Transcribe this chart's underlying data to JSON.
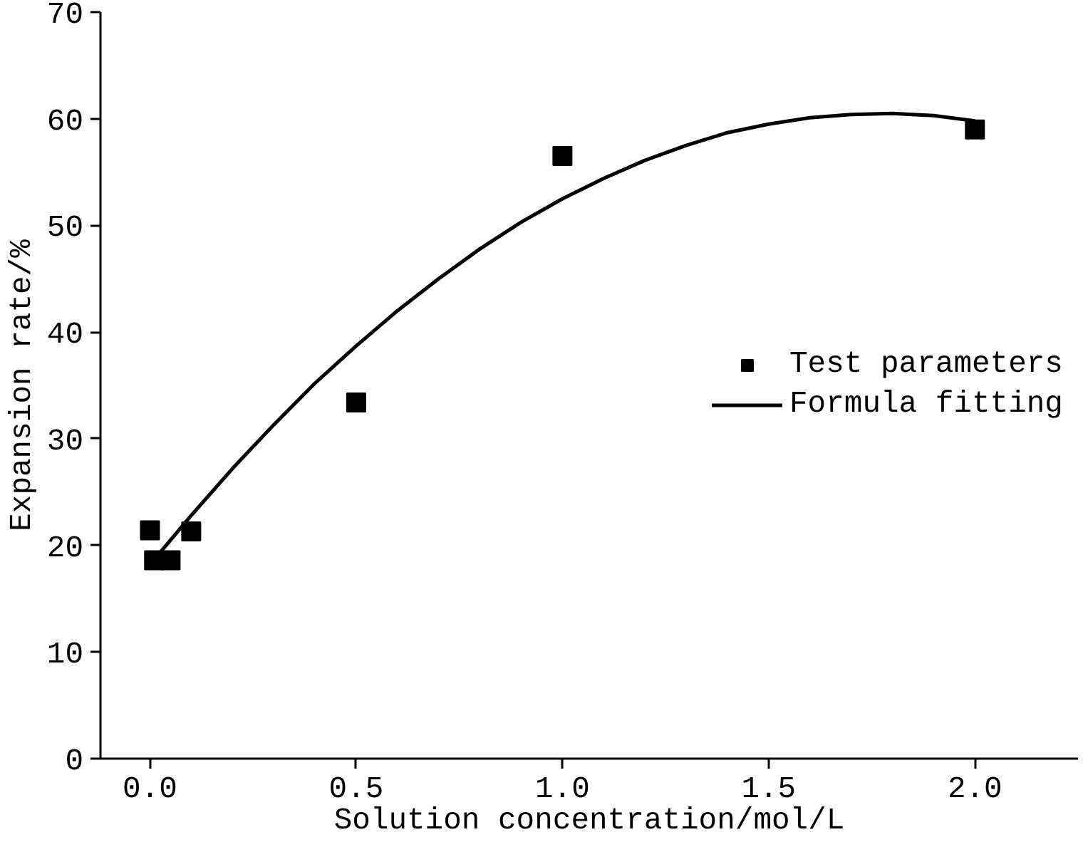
{
  "chart_data": {
    "type": "scatter",
    "xlabel": "Solution concentration/mol/L",
    "ylabel": "Expansion rate/%",
    "xlim": [
      -0.12,
      2.25
    ],
    "ylim": [
      0,
      70
    ],
    "xticks": [
      {
        "value": 0,
        "label": "0.0"
      },
      0.5,
      {
        "value": 1,
        "label": "1.0"
      },
      1.5,
      {
        "value": 2,
        "label": "2.0"
      }
    ],
    "yticks": [
      0,
      10,
      20,
      30,
      40,
      50,
      60,
      70
    ],
    "grid": false,
    "legend": "right",
    "series": [
      {
        "name": "Test parameters",
        "marker": "square",
        "color": "#000000",
        "x": [
          0,
          0.01,
          0.05,
          0.1,
          0.5,
          1.0,
          2.0
        ],
        "values": [
          21.4,
          18.6,
          18.6,
          21.3,
          33.4,
          56.5,
          59.0
        ]
      },
      {
        "name": "Formula fitting",
        "type": "line",
        "color": "#000000",
        "line_style": "solid",
        "x": [
          0,
          0.1,
          0.2,
          0.3,
          0.4,
          0.5,
          0.6,
          0.7,
          0.8,
          0.9,
          1.0,
          1.1,
          1.2,
          1.3,
          1.4,
          1.5,
          1.6,
          1.7,
          1.8,
          1.9,
          2.0
        ],
        "values": [
          18.2,
          22.8,
          27.2,
          31.3,
          35.2,
          38.7,
          42.0,
          45.0,
          47.8,
          50.3,
          52.5,
          54.4,
          56.1,
          57.5,
          58.7,
          59.5,
          60.1,
          60.4,
          60.5,
          60.3,
          59.8
        ]
      }
    ]
  }
}
